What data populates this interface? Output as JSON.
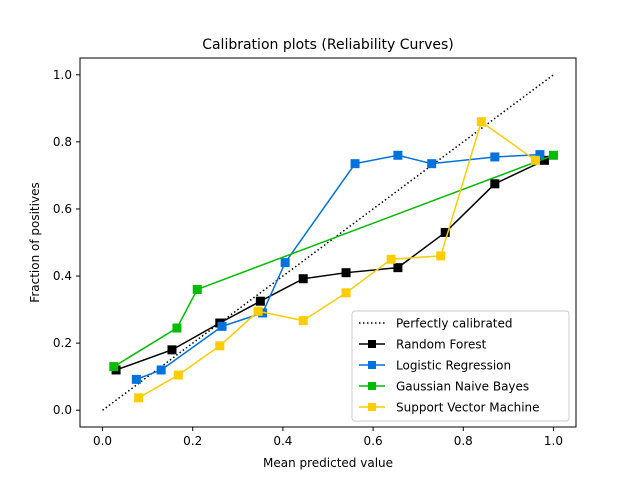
{
  "chart_data": {
    "type": "line",
    "title": "Calibration plots (Reliability Curves)",
    "xlabel": "Mean predicted value",
    "ylabel": "Fraction of positives",
    "xlim": [
      -0.05,
      1.05
    ],
    "ylim": [
      -0.05,
      1.05
    ],
    "xticks": [
      "0.0",
      "0.2",
      "0.4",
      "0.6",
      "0.8",
      "1.0"
    ],
    "yticks": [
      "0.0",
      "0.2",
      "0.4",
      "0.6",
      "0.8",
      "1.0"
    ],
    "grid": false,
    "legend_position": "lower-right",
    "reference": {
      "name": "Perfectly calibrated",
      "color": "#000000",
      "style": "dotted",
      "x": [
        0.0,
        1.0
      ],
      "y": [
        0.0,
        1.0
      ]
    },
    "series": [
      {
        "name": "Random Forest",
        "color": "#000000",
        "marker": "square",
        "x": [
          0.03,
          0.154,
          0.26,
          0.35,
          0.445,
          0.54,
          0.655,
          0.76,
          0.87,
          0.98
        ],
        "y": [
          0.12,
          0.18,
          0.26,
          0.325,
          0.392,
          0.41,
          0.425,
          0.53,
          0.675,
          0.745
        ]
      },
      {
        "name": "Logistic Regression",
        "color": "#0072dd",
        "marker": "square",
        "x": [
          0.075,
          0.13,
          0.265,
          0.355,
          0.405,
          0.56,
          0.655,
          0.73,
          0.87,
          0.97
        ],
        "y": [
          0.092,
          0.12,
          0.25,
          0.29,
          0.44,
          0.735,
          0.76,
          0.735,
          0.755,
          0.762
        ]
      },
      {
        "name": "Gaussian Naive Bayes",
        "color": "#00bb00",
        "marker": "square",
        "x": [
          0.025,
          0.165,
          0.21,
          1.0
        ],
        "y": [
          0.13,
          0.245,
          0.36,
          0.76
        ]
      },
      {
        "name": "Support Vector Machine",
        "color": "#ffcc00",
        "marker": "square",
        "x": [
          0.08,
          0.168,
          0.26,
          0.345,
          0.445,
          0.54,
          0.64,
          0.75,
          0.84,
          0.96
        ],
        "y": [
          0.037,
          0.105,
          0.192,
          0.295,
          0.267,
          0.35,
          0.45,
          0.46,
          0.86,
          0.745
        ]
      }
    ]
  }
}
